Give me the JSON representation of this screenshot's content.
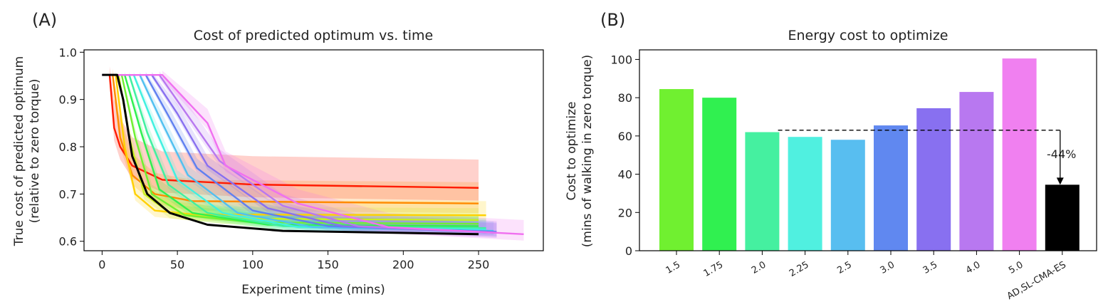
{
  "chart_data": [
    {
      "panel_label": "(A)",
      "type": "line",
      "title": "Cost of predicted optimum vs. time",
      "xlabel": "Experiment time (mins)",
      "ylabel": [
        "True cost of predicted optimum",
        "(relative to zero torque)"
      ],
      "xlim": [
        -12,
        293
      ],
      "ylim": [
        0.58,
        1.005
      ],
      "xticks": [
        0,
        50,
        100,
        150,
        200,
        250
      ],
      "yticks": [
        0.6,
        0.7,
        0.8,
        0.9,
        1.0
      ],
      "xtick_labels": [
        "0",
        "50",
        "100",
        "150",
        "200",
        "250"
      ],
      "ytick_labels": [
        "0.6",
        "0.7",
        "0.8",
        "0.9",
        "1.0"
      ],
      "grid": false,
      "series": [
        {
          "color": "#ff1a00",
          "spread": 0.06,
          "points": [
            [
              5,
              0.952
            ],
            [
              8,
              0.84
            ],
            [
              12,
              0.8
            ],
            [
              20,
              0.76
            ],
            [
              40,
              0.73
            ],
            [
              100,
              0.72
            ],
            [
              250,
              0.713
            ]
          ]
        },
        {
          "color": "#ff8a00",
          "spread": 0.045,
          "points": [
            [
              7,
              0.952
            ],
            [
              12,
              0.82
            ],
            [
              20,
              0.74
            ],
            [
              35,
              0.7
            ],
            [
              60,
              0.685
            ],
            [
              250,
              0.68
            ]
          ]
        },
        {
          "color": "#ffd000",
          "spread": 0.03,
          "points": [
            [
              9,
              0.952
            ],
            [
              15,
              0.8
            ],
            [
              22,
              0.7
            ],
            [
              35,
              0.665
            ],
            [
              60,
              0.657
            ],
            [
              255,
              0.655
            ]
          ]
        },
        {
          "color": "#c8f020",
          "spread": 0.025,
          "points": [
            [
              11,
              0.952
            ],
            [
              18,
              0.82
            ],
            [
              28,
              0.7
            ],
            [
              45,
              0.66
            ],
            [
              80,
              0.648
            ],
            [
              250,
              0.645
            ]
          ]
        },
        {
          "color": "#70f030",
          "spread": 0.02,
          "points": [
            [
              13,
              0.952
            ],
            [
              22,
              0.82
            ],
            [
              33,
              0.7
            ],
            [
              55,
              0.655
            ],
            [
              100,
              0.64
            ],
            [
              250,
              0.637
            ]
          ]
        },
        {
          "color": "#30f050",
          "spread": 0.02,
          "points": [
            [
              15,
              0.952
            ],
            [
              26,
              0.83
            ],
            [
              38,
              0.71
            ],
            [
              60,
              0.66
            ],
            [
              110,
              0.635
            ],
            [
              250,
              0.632
            ]
          ]
        },
        {
          "color": "#40f0a0",
          "spread": 0.02,
          "points": [
            [
              18,
              0.952
            ],
            [
              30,
              0.83
            ],
            [
              44,
              0.72
            ],
            [
              70,
              0.66
            ],
            [
              120,
              0.632
            ],
            [
              255,
              0.628
            ]
          ]
        },
        {
          "color": "#40f0e0",
          "spread": 0.02,
          "points": [
            [
              21,
              0.952
            ],
            [
              35,
              0.84
            ],
            [
              50,
              0.73
            ],
            [
              80,
              0.66
            ],
            [
              130,
              0.63
            ],
            [
              255,
              0.625
            ]
          ]
        },
        {
          "color": "#50c0f0",
          "spread": 0.02,
          "points": [
            [
              25,
              0.952
            ],
            [
              40,
              0.85
            ],
            [
              57,
              0.74
            ],
            [
              90,
              0.66
            ],
            [
              140,
              0.63
            ],
            [
              260,
              0.622
            ]
          ]
        },
        {
          "color": "#6080f0",
          "spread": 0.02,
          "points": [
            [
              29,
              0.952
            ],
            [
              45,
              0.86
            ],
            [
              63,
              0.755
            ],
            [
              100,
              0.665
            ],
            [
              150,
              0.632
            ],
            [
              262,
              0.62
            ]
          ]
        },
        {
          "color": "#8870f0",
          "spread": 0.02,
          "points": [
            [
              33,
              0.952
            ],
            [
              50,
              0.87
            ],
            [
              70,
              0.76
            ],
            [
              110,
              0.67
            ],
            [
              160,
              0.632
            ],
            [
              262,
              0.618
            ]
          ]
        },
        {
          "color": "#b878f0",
          "spread": 0.025,
          "points": [
            [
              38,
              0.952
            ],
            [
              56,
              0.87
            ],
            [
              78,
              0.77
            ],
            [
              120,
              0.675
            ],
            [
              170,
              0.632
            ],
            [
              262,
              0.618
            ]
          ]
        },
        {
          "color": "#f070f0",
          "spread": 0.03,
          "points": [
            [
              40,
              0.952
            ],
            [
              70,
              0.85
            ],
            [
              82,
              0.76
            ],
            [
              130,
              0.68
            ],
            [
              190,
              0.63
            ],
            [
              280,
              0.615
            ]
          ]
        },
        {
          "color": "#000000",
          "spread": 0,
          "points": [
            [
              0,
              0.952
            ],
            [
              10,
              0.952
            ],
            [
              14,
              0.9
            ],
            [
              20,
              0.78
            ],
            [
              30,
              0.7
            ],
            [
              45,
              0.66
            ],
            [
              70,
              0.635
            ],
            [
              120,
              0.622
            ],
            [
              250,
              0.615
            ]
          ]
        }
      ]
    },
    {
      "panel_label": "(B)",
      "type": "bar",
      "title": "Energy cost to optimize",
      "xlabel": "",
      "ylabel": [
        "Cost to optimize",
        "(mins of walking in zero torque)"
      ],
      "ylim": [
        0,
        105
      ],
      "yticks": [
        0,
        20,
        40,
        60,
        80,
        100
      ],
      "ytick_labels": [
        "0",
        "20",
        "40",
        "60",
        "80",
        "100"
      ],
      "grid": false,
      "categories": [
        "1.5",
        "1.75",
        "2.0",
        "2.25",
        "2.5",
        "3.0",
        "3.5",
        "4.0",
        "5.0",
        "AD,SL-CMA-ES"
      ],
      "values": [
        84.5,
        80,
        62,
        59.5,
        58,
        65.5,
        74.5,
        83,
        100.5,
        34.5
      ],
      "colors": [
        "#70f030",
        "#30f050",
        "#45f0a0",
        "#50f0e0",
        "#58bef0",
        "#6088f0",
        "#8870f0",
        "#b878f0",
        "#f080f0",
        "#000000"
      ],
      "reference_line": {
        "value": 63,
        "style": "dashed"
      },
      "annotation": {
        "text": "-44%",
        "from": 63,
        "to": 34.5
      }
    }
  ]
}
